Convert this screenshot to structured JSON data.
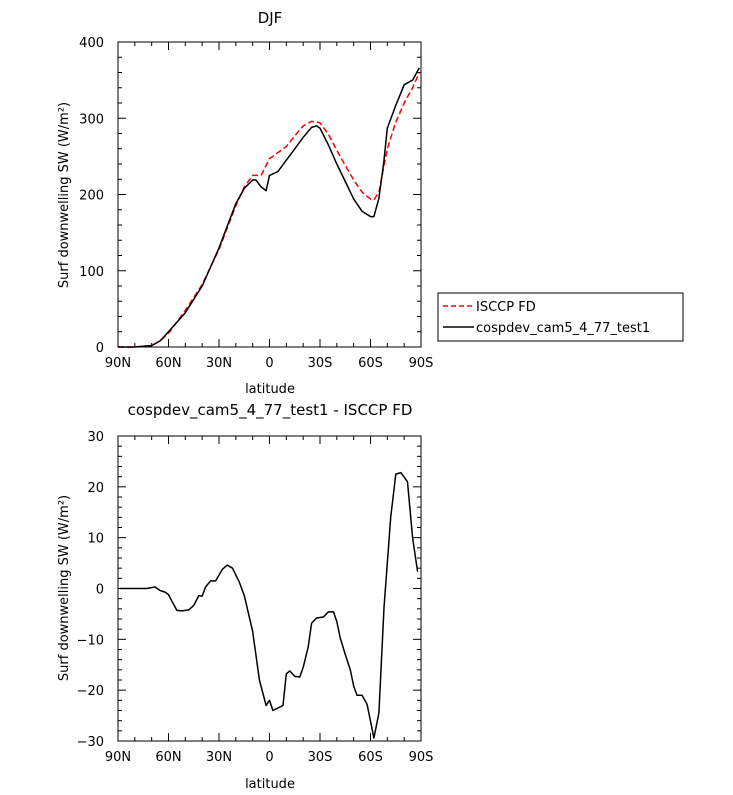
{
  "chart_data": [
    {
      "type": "line",
      "title": "DJF",
      "xlabel": "latitude",
      "ylabel": "Surf downwelling SW (W/m²)",
      "xlim": [
        90,
        -90
      ],
      "ylim": [
        0,
        400
      ],
      "xticks": [
        90,
        60,
        30,
        0,
        -30,
        -60,
        -90
      ],
      "xtick_labels": [
        "90N",
        "60N",
        "30N",
        "0",
        "30S",
        "60S",
        "90S"
      ],
      "yticks": [
        0,
        100,
        200,
        300,
        400
      ],
      "ytick_labels": [
        "0",
        "100",
        "200",
        "300",
        "400"
      ],
      "legend": "right",
      "series": [
        {
          "name": "ISCCP FD",
          "color": "#ff0000",
          "dash": "dashed",
          "x": [
            90,
            80,
            70,
            65,
            60,
            50,
            40,
            30,
            20,
            15,
            10,
            5,
            0,
            -5,
            -10,
            -15,
            -20,
            -25,
            -30,
            -35,
            -40,
            -45,
            -50,
            -55,
            -60,
            -62,
            -65,
            -70,
            -75,
            -80,
            -85,
            -89
          ],
          "y": [
            0,
            0,
            2,
            8,
            18,
            48,
            82,
            128,
            185,
            210,
            225,
            225,
            247,
            255,
            263,
            277,
            290,
            296,
            294,
            279,
            258,
            238,
            219,
            203,
            194,
            193,
            203,
            260,
            295,
            320,
            340,
            360
          ]
        },
        {
          "name": "cospdev_cam5_4_77_test1",
          "color": "#000000",
          "dash": "solid",
          "x": [
            90,
            80,
            70,
            65,
            60,
            50,
            40,
            30,
            20,
            15,
            10,
            8,
            5,
            2,
            0,
            -5,
            -10,
            -15,
            -20,
            -25,
            -28,
            -30,
            -35,
            -40,
            -45,
            -50,
            -55,
            -60,
            -62,
            -65,
            -68,
            -70,
            -75,
            -80,
            -85,
            -89
          ],
          "y": [
            0,
            0,
            2,
            8,
            20,
            45,
            80,
            130,
            188,
            208,
            219,
            219,
            210,
            205,
            225,
            230,
            245,
            260,
            275,
            288,
            290,
            287,
            265,
            240,
            217,
            194,
            178,
            171,
            171,
            195,
            245,
            287,
            317,
            344,
            350,
            366
          ]
        }
      ]
    },
    {
      "type": "line",
      "title": "cospdev_cam5_4_77_test1 - ISCCP FD",
      "xlabel": "latitude",
      "ylabel": "Surf downwelling SW (W/m²)",
      "xlim": [
        90,
        -90
      ],
      "ylim": [
        -30,
        30
      ],
      "xticks": [
        90,
        60,
        30,
        0,
        -30,
        -60,
        -90
      ],
      "xtick_labels": [
        "90N",
        "60N",
        "30N",
        "0",
        "30S",
        "60S",
        "90S"
      ],
      "yticks": [
        -30,
        -20,
        -10,
        0,
        10,
        20,
        30
      ],
      "ytick_labels": [
        "−30",
        "−20",
        "−10",
        "0",
        "10",
        "20",
        "30"
      ],
      "series": [
        {
          "color": "#000000",
          "x": [
            89,
            80,
            73,
            68,
            65,
            62,
            60,
            58,
            55,
            52,
            48,
            45,
            42,
            40,
            38,
            35,
            32,
            28,
            25,
            22,
            18,
            15,
            10,
            6,
            2,
            0,
            -2,
            -5,
            -8,
            -10,
            -12,
            -15,
            -18,
            -20,
            -23,
            -25,
            -28,
            -32,
            -35,
            -38,
            -40,
            -42,
            -45,
            -48,
            -50,
            -52,
            -55,
            -58,
            -62,
            -65,
            -68,
            -72,
            -75,
            -78,
            -82,
            -85,
            -88
          ],
          "y": [
            0,
            0,
            0,
            0.3,
            -0.4,
            -0.7,
            -1.2,
            -2.5,
            -4.3,
            -4.4,
            -4.2,
            -3.3,
            -1.4,
            -1.5,
            0.3,
            1.5,
            1.5,
            3.8,
            4.6,
            4,
            1.3,
            -1.4,
            -8.5,
            -18,
            -23,
            -22,
            -24,
            -23.5,
            -23,
            -16.8,
            -16.2,
            -17.3,
            -17.4,
            -15.5,
            -11.5,
            -6.8,
            -5.8,
            -5.6,
            -4.6,
            -4.6,
            -6.5,
            -9.7,
            -13,
            -16,
            -19.2,
            -21,
            -21,
            -22.8,
            -29.4,
            -24.5,
            -3.8,
            14,
            22.5,
            22.8,
            21,
            10,
            3.3
          ]
        }
      ]
    }
  ],
  "legend_entries": [
    {
      "label": "ISCCP FD",
      "color": "#ff0000",
      "dash": "dashed"
    },
    {
      "label": "cospdev_cam5_4_77_test1",
      "color": "#000000",
      "dash": "solid"
    }
  ]
}
